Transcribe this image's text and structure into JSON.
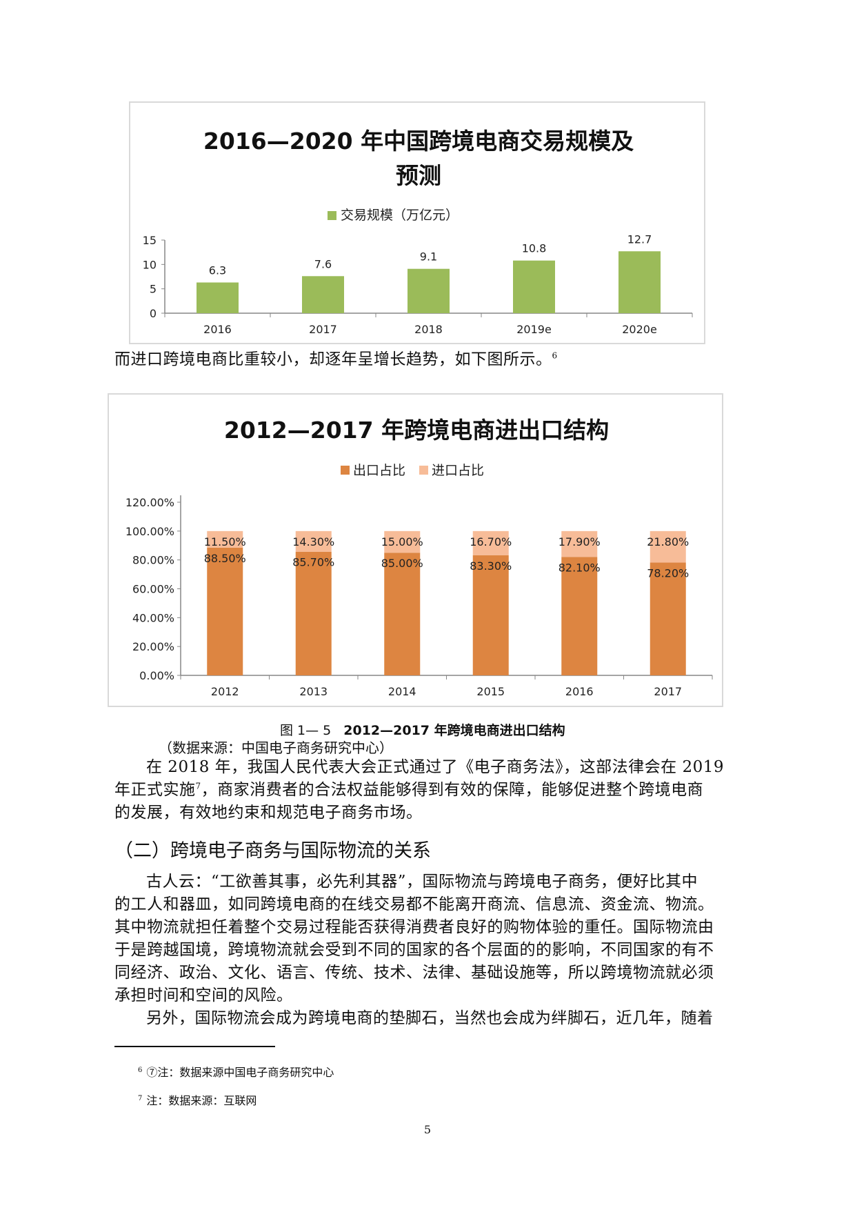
{
  "chart_data": [
    {
      "type": "bar",
      "title": "2016—2020 年中国跨境电商交易规模及预测",
      "title_lines": [
        "2016—2020 年中国跨境电商交易规模及",
        "预测"
      ],
      "categories": [
        "2016",
        "2017",
        "2018",
        "2019e",
        "2020e"
      ],
      "series": [
        {
          "name": "交易规模（万亿元）",
          "values": [
            6.3,
            7.6,
            9.1,
            10.8,
            12.7
          ],
          "color": "#9bbb59"
        }
      ],
      "data_labels": [
        "6.3",
        "7.6",
        "9.1",
        "10.8",
        "12.7"
      ],
      "ylim": [
        0,
        15
      ],
      "y_ticks": [
        "0",
        "5",
        "10",
        "15"
      ],
      "legend": "top",
      "grid": false
    },
    {
      "type": "bar",
      "stacked": true,
      "title": "2012—2017 年跨境电商进出口结构",
      "categories": [
        "2012",
        "2013",
        "2014",
        "2015",
        "2016",
        "2017"
      ],
      "series": [
        {
          "name": "出口占比",
          "values": [
            88.5,
            85.7,
            85.0,
            83.3,
            82.1,
            78.2
          ],
          "labels": [
            "88.50%",
            "85.70%",
            "85.00%",
            "83.30%",
            "82.10%",
            "78.20%"
          ],
          "color": "#dd8541"
        },
        {
          "name": "进口占比",
          "values": [
            11.5,
            14.3,
            15.0,
            16.7,
            17.9,
            21.8
          ],
          "labels": [
            "11.50%",
            "14.30%",
            "15.00%",
            "16.70%",
            "17.90%",
            "21.80%"
          ],
          "color": "#f7bc98"
        }
      ],
      "ylim": [
        0,
        120
      ],
      "y_ticks": [
        "0.00%",
        "20.00%",
        "40.00%",
        "60.00%",
        "80.00%",
        "100.00%",
        "120.00%"
      ],
      "legend": "top",
      "grid": false
    }
  ],
  "text": {
    "intro": "而进口跨境电商比重较小，却逐年呈增长趋势，如下图所示。",
    "intro_ref": "6",
    "caption_no": "图 1— 5",
    "caption_title": "2012—2017 年跨境电商进出口结构",
    "source": "（数据来源：中国电子商务研究中心）",
    "p1_line1": "在 2018 年，我国人民代表大会正式通过了《电子商务法》，这部法律会在 2019",
    "p1_line2a": "年正式实施",
    "p1_ref": "7",
    "p1_line2b": "，商家消费者的合法权益能够得到有效的保障，能够促进整个跨境电商",
    "p1_line3": "的发展，有效地约束和规范电子商务市场。",
    "heading": "（二）跨境电子商务与国际物流的关系",
    "p2_line1": "古人云：“工欲善其事，必先利其器”，国际物流与跨境电子商务，便好比其中",
    "p2_line2": "的工人和器皿，如同跨境电商的在线交易都不能离开商流、信息流、资金流、物流。",
    "p2_line3": "其中物流就担任着整个交易过程能否获得消费者良好的购物体验的重任。国际物流由",
    "p2_line4": "于是跨越国境，跨境物流就会受到不同的国家的各个层面的的影响，不同国家的有不",
    "p2_line5": "同经济、政治、文化、语言、传统、技术、法律、基础设施等，所以跨境物流就必须",
    "p2_line6": "承担时间和空间的风险。",
    "p3_line1": "另外，国际物流会成为跨境电商的垫脚石，当然也会成为绊脚石，近几年，随着",
    "fn6_no": "6",
    "fn6": "⑦注：数据来源中国电子商务研究中心",
    "fn7_no": "7",
    "fn7": "注：数据来源：互联网",
    "page_number": "5"
  }
}
